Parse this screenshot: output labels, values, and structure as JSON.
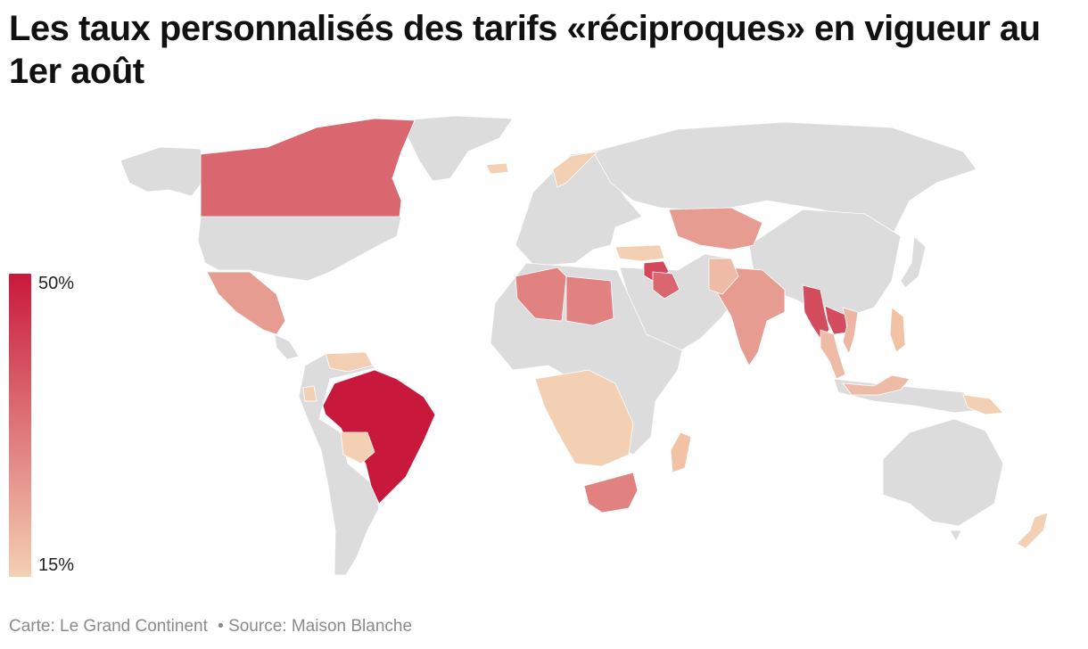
{
  "title": "Les taux personnalisés des tarifs «réciproques» en vigueur au 1er août",
  "legend": {
    "max_label": "50%",
    "min_label": "15%",
    "max_color": "#c8193c",
    "min_color": "#f3d0b4"
  },
  "footer": {
    "credit": "Carte: Le Grand Continent",
    "source": "• Source: Maison Blanche"
  },
  "colors": {
    "no_data": "#dcdcdc",
    "ocean": "#ffffff",
    "border": "#ffffff"
  },
  "map_data": {
    "type": "choropleth",
    "scale_min": 15,
    "scale_max": 50,
    "unit": "%",
    "highlighted_regions": [
      {
        "id": "canada",
        "value": 35
      },
      {
        "id": "mexico",
        "value": 25
      },
      {
        "id": "brazil",
        "value": 50
      },
      {
        "id": "bolivia",
        "value": 15
      },
      {
        "id": "venezuela",
        "value": 15
      },
      {
        "id": "ecuador",
        "value": 15
      },
      {
        "id": "algeria",
        "value": 30
      },
      {
        "id": "libya",
        "value": 30
      },
      {
        "id": "syria",
        "value": 41
      },
      {
        "id": "iraq",
        "value": 35
      },
      {
        "id": "south-africa",
        "value": 30
      },
      {
        "id": "kazakhstan",
        "value": 25
      },
      {
        "id": "india",
        "value": 25
      },
      {
        "id": "pakistan",
        "value": 19
      },
      {
        "id": "myanmar",
        "value": 40
      },
      {
        "id": "laos",
        "value": 40
      },
      {
        "id": "thailand",
        "value": 19
      },
      {
        "id": "vietnam",
        "value": 20
      },
      {
        "id": "indonesia",
        "value": 19
      },
      {
        "id": "turkey",
        "value": 15
      },
      {
        "id": "central-africa",
        "value": 15
      },
      {
        "id": "madagascar",
        "value": 15
      },
      {
        "id": "new-zealand",
        "value": 15
      },
      {
        "id": "papua-new-guinea",
        "value": 15
      },
      {
        "id": "norway",
        "value": 15
      },
      {
        "id": "iceland",
        "value": 15
      }
    ]
  }
}
